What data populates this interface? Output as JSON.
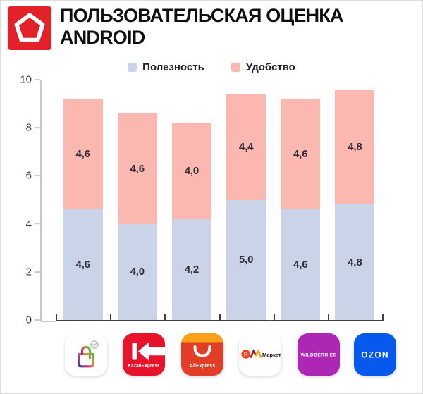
{
  "header": {
    "title_line1": "ПОЛЬЗОВАТЕЛЬСКАЯ ОЦЕНКА",
    "title_line2": "ANDROID",
    "logo_color": "#E32129"
  },
  "legend": [
    {
      "label": "Полезность",
      "color": "#CAD3E8"
    },
    {
      "label": "Удобство",
      "color": "#FBB8B0"
    }
  ],
  "chart_data": {
    "type": "bar",
    "stacked": true,
    "title": "Пользовательская оценка Android",
    "categories": [
      "megamarket",
      "kazanexpress",
      "aliexpress",
      "yandex-market",
      "wildberries",
      "ozon"
    ],
    "series": [
      {
        "name": "Полезность",
        "key": "usefulness",
        "color": "#CAD3E8",
        "values": [
          4.6,
          4.0,
          4.2,
          5.0,
          4.6,
          4.8
        ],
        "labels": [
          "4,6",
          "4,0",
          "4,2",
          "5,0",
          "4,6",
          "4,8"
        ]
      },
      {
        "name": "Удобство",
        "key": "convenience",
        "color": "#FBB8B0",
        "values": [
          4.6,
          4.6,
          4.0,
          4.4,
          4.6,
          4.8
        ],
        "labels": [
          "4,6",
          "4,6",
          "4,0",
          "4,4",
          "4,6",
          "4,8"
        ]
      }
    ],
    "totals": [
      9.2,
      8.6,
      8.2,
      9.4,
      9.2,
      9.6
    ],
    "ylim": [
      0,
      10
    ],
    "yticks": [
      0,
      2,
      4,
      6,
      8,
      10
    ],
    "grid": false,
    "legend_position": "top"
  },
  "icons": [
    {
      "name": "megamarket",
      "bg": "#ffffff"
    },
    {
      "name": "kazanexpress",
      "bg": "#E8122A",
      "label": "KazanExpress"
    },
    {
      "name": "aliexpress",
      "bg": "#E23D26",
      "label": "AliExpress"
    },
    {
      "name": "yandex-market",
      "bg": "#ffffff",
      "ya": "Я",
      "label": "Маркет"
    },
    {
      "name": "wildberries",
      "bg": "#AC28B4",
      "label": "WILDBERRIES"
    },
    {
      "name": "ozon",
      "bg": "#0758EC",
      "label": "OZON"
    }
  ]
}
